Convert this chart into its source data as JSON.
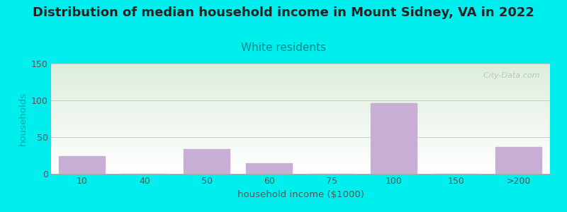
{
  "title": "Distribution of median household income in Mount Sidney, VA in 2022",
  "subtitle": "White residents",
  "xlabel": "household income ($1000)",
  "ylabel": "households",
  "title_fontsize": 13,
  "subtitle_fontsize": 11,
  "label_fontsize": 9.5,
  "tick_fontsize": 9,
  "background_color": "#00EEEE",
  "plot_bg_top": "#ddeedd",
  "plot_bg_bottom": "#ffffff",
  "bar_color": "#c8aed4",
  "bar_edgecolor": "#c8aed4",
  "ylabel_color": "#00AAAA",
  "title_color": "#222222",
  "subtitle_color": "#008888",
  "tick_color": "#555555",
  "grid_color": "#cccccc",
  "watermark_color": "#bbbbbb",
  "ylim": [
    0,
    150
  ],
  "yticks": [
    0,
    50,
    100,
    150
  ],
  "bars": [
    {
      "label": "10",
      "value": 24
    },
    {
      "label": "40",
      "value": 0
    },
    {
      "label": "50",
      "value": 34
    },
    {
      "label": "60",
      "value": 14
    },
    {
      "label": "75",
      "value": 0
    },
    {
      "label": "100",
      "value": 96
    },
    {
      "label": "150",
      "value": 0
    },
    {
      "label": ">200",
      "value": 37
    }
  ],
  "watermark": "  City-Data.com"
}
